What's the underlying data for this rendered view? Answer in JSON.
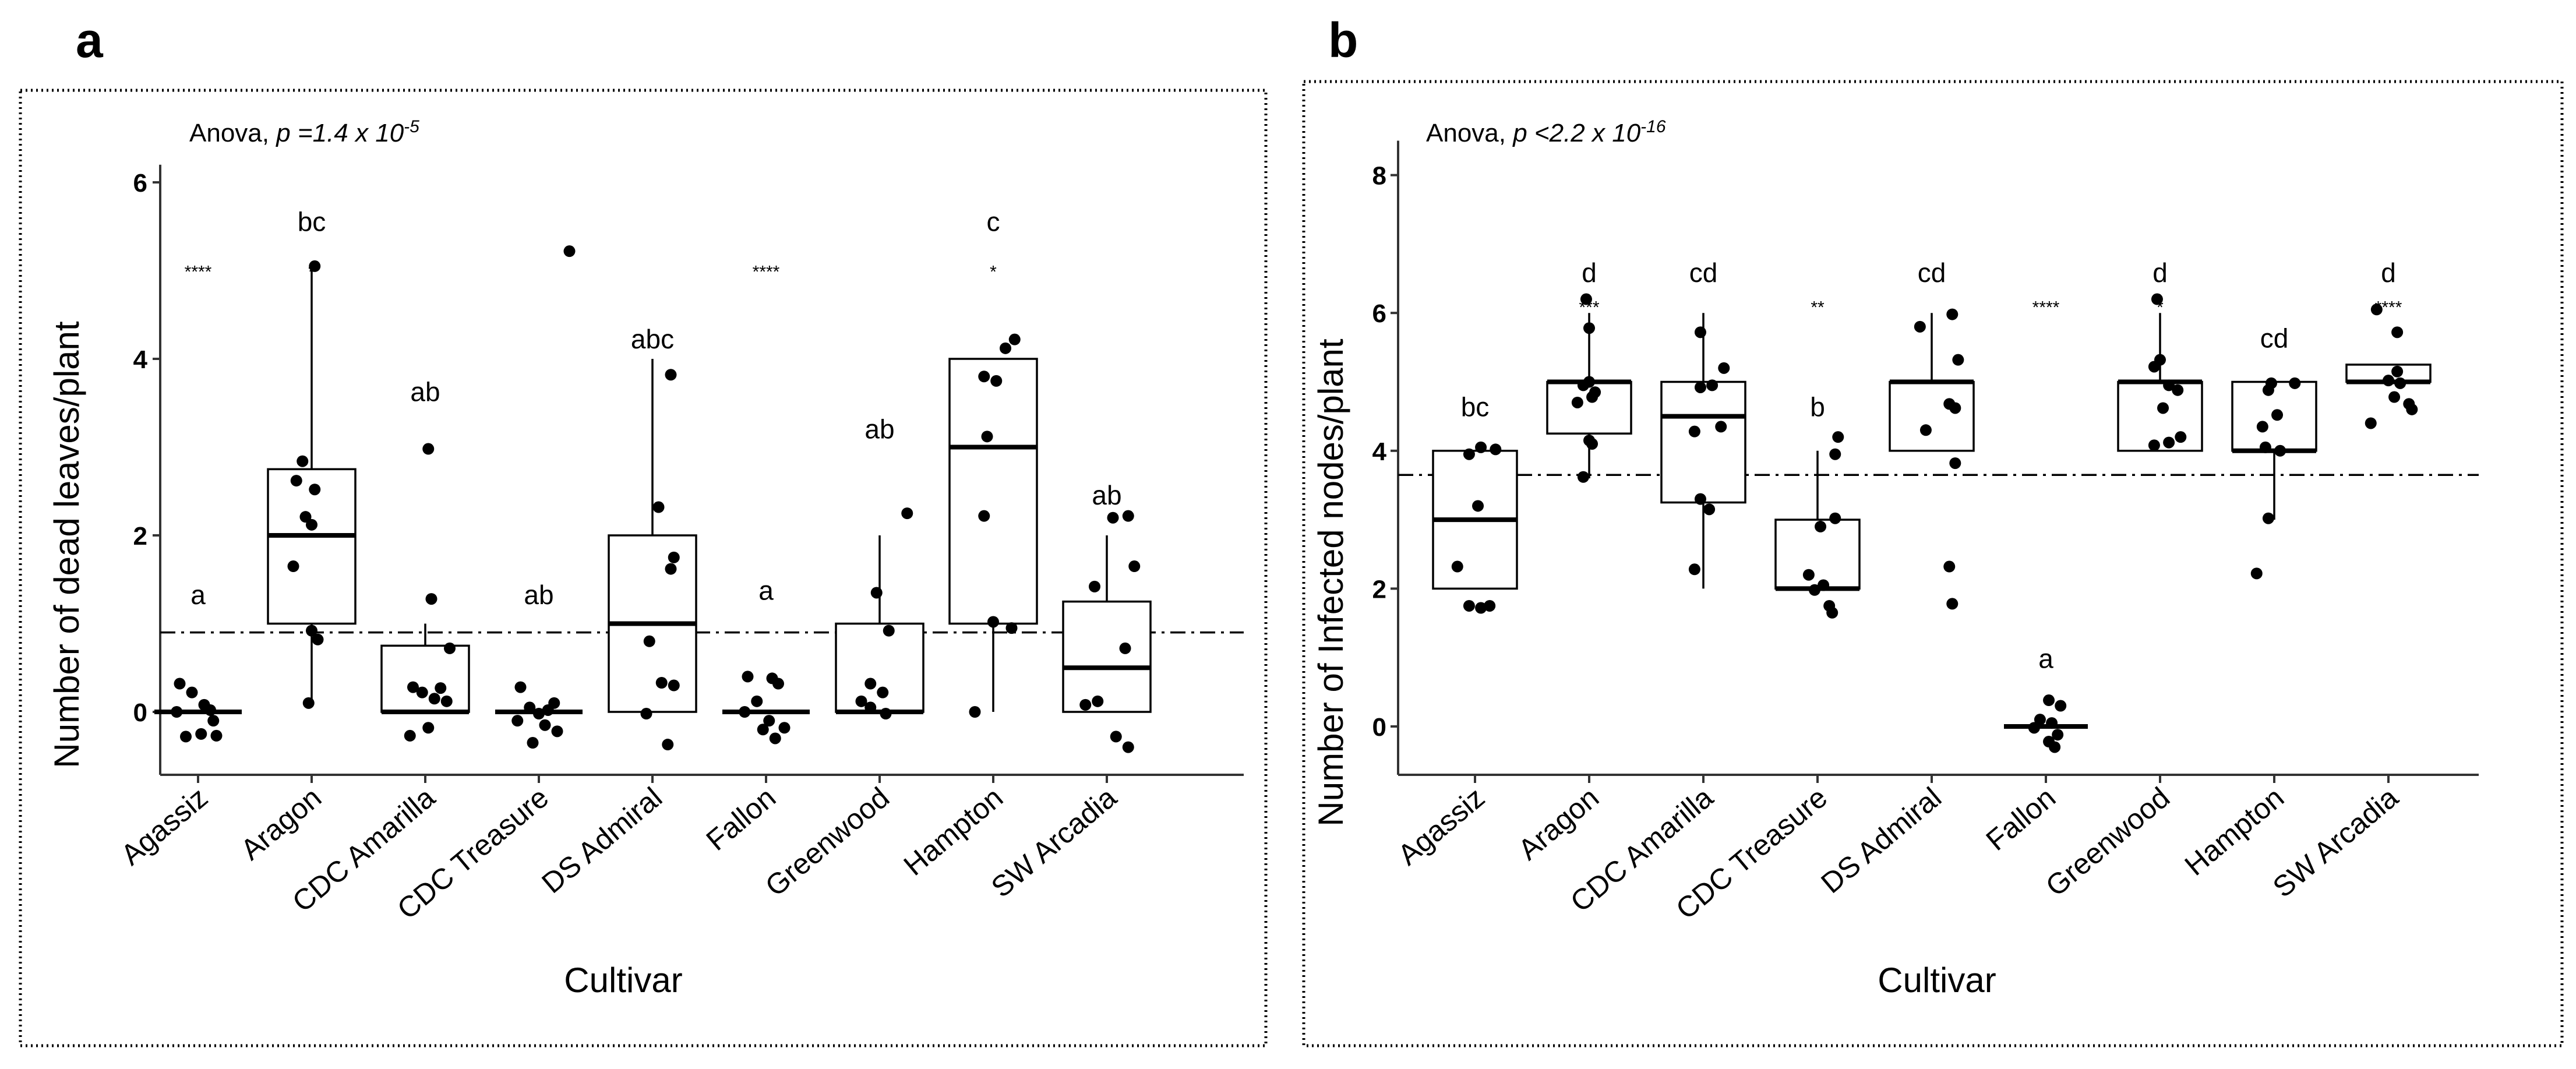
{
  "chart_data": [
    {
      "panel": "a",
      "type": "box",
      "anova_prefix": "Anova, ",
      "anova_p": "p =1.4 x 10",
      "anova_exp": "-5",
      "xlabel": "Cultivar",
      "ylabel": "Number of dead leaves/plant",
      "ylim": [
        -0.7,
        6.2
      ],
      "yticks": [
        "0",
        "2",
        "4",
        "6"
      ],
      "reference_line": 0.9,
      "categories": [
        "Agassiz",
        "Aragon",
        "CDC Amarilla",
        "CDC Treasure",
        "DS Admiral",
        "Fallon",
        "Greenwood",
        "Hampton",
        "SW Arcadia"
      ],
      "boxes": [
        {
          "q1": 0,
          "median": 0,
          "q3": 0,
          "lo": 0,
          "hi": 0
        },
        {
          "q1": 1,
          "median": 2,
          "q3": 2.75,
          "lo": 0.1,
          "hi": 5
        },
        {
          "q1": 0,
          "median": 0,
          "q3": 0.75,
          "lo": 0,
          "hi": 1
        },
        {
          "q1": 0,
          "median": 0,
          "q3": 0,
          "lo": 0,
          "hi": 0
        },
        {
          "q1": 0,
          "median": 1,
          "q3": 2,
          "lo": 0,
          "hi": 4
        },
        {
          "q1": 0,
          "median": 0,
          "q3": 0,
          "lo": 0,
          "hi": 0
        },
        {
          "q1": 0,
          "median": 0,
          "q3": 1,
          "lo": 0,
          "hi": 2
        },
        {
          "q1": 1,
          "median": 3,
          "q3": 4,
          "lo": 0,
          "hi": 4
        },
        {
          "q1": 0,
          "median": 0.5,
          "q3": 1.25,
          "lo": 0,
          "hi": 2
        }
      ],
      "points": [
        [
          [
            -0.3,
            0.32
          ],
          [
            -0.1,
            0.22
          ],
          [
            0.1,
            0.08
          ],
          [
            0.2,
            0.02
          ],
          [
            -0.35,
            0.0
          ],
          [
            0.25,
            -0.1
          ],
          [
            0.05,
            -0.25
          ],
          [
            -0.2,
            -0.28
          ],
          [
            0.3,
            -0.27
          ]
        ],
        [
          [
            0.05,
            5.05
          ],
          [
            -0.15,
            2.84
          ],
          [
            -0.25,
            2.62
          ],
          [
            0.05,
            2.52
          ],
          [
            -0.1,
            2.21
          ],
          [
            0.0,
            2.12
          ],
          [
            -0.3,
            1.65
          ],
          [
            0.0,
            0.92
          ],
          [
            0.1,
            0.82
          ],
          [
            -0.05,
            0.1
          ]
        ],
        [
          [
            0.05,
            2.98
          ],
          [
            0.1,
            1.28
          ],
          [
            -0.2,
            0.28
          ],
          [
            0.4,
            0.72
          ],
          [
            0.25,
            0.27
          ],
          [
            -0.05,
            0.22
          ],
          [
            0.15,
            0.15
          ],
          [
            0.35,
            0.12
          ],
          [
            0.05,
            -0.18
          ],
          [
            -0.25,
            -0.27
          ]
        ],
        [
          [
            0.5,
            5.22
          ],
          [
            -0.3,
            0.28
          ],
          [
            0.25,
            0.1
          ],
          [
            -0.15,
            0.05
          ],
          [
            0.15,
            0.02
          ],
          [
            0.0,
            -0.02
          ],
          [
            -0.35,
            -0.1
          ],
          [
            0.1,
            -0.15
          ],
          [
            0.3,
            -0.22
          ],
          [
            -0.1,
            -0.35
          ]
        ],
        [
          [
            0.3,
            3.82
          ],
          [
            0.1,
            2.32
          ],
          [
            0.35,
            1.75
          ],
          [
            0.3,
            1.62
          ],
          [
            -0.05,
            0.8
          ],
          [
            0.35,
            0.3
          ],
          [
            0.15,
            0.33
          ],
          [
            -0.1,
            -0.02
          ],
          [
            0.25,
            -0.37
          ]
        ],
        [
          [
            -0.3,
            0.4
          ],
          [
            0.1,
            0.38
          ],
          [
            0.2,
            0.32
          ],
          [
            -0.15,
            0.12
          ],
          [
            -0.35,
            0.0
          ],
          [
            0.05,
            -0.1
          ],
          [
            -0.05,
            -0.2
          ],
          [
            0.3,
            -0.18
          ],
          [
            0.15,
            -0.3
          ]
        ],
        [
          [
            0.45,
            2.25
          ],
          [
            -0.05,
            1.35
          ],
          [
            0.15,
            0.92
          ],
          [
            -0.15,
            0.32
          ],
          [
            0.05,
            0.22
          ],
          [
            -0.3,
            0.12
          ],
          [
            -0.15,
            0.05
          ],
          [
            0.1,
            -0.02
          ]
        ],
        [
          [
            0.35,
            4.22
          ],
          [
            0.2,
            4.12
          ],
          [
            -0.15,
            3.8
          ],
          [
            0.05,
            3.75
          ],
          [
            -0.1,
            3.12
          ],
          [
            -0.15,
            2.22
          ],
          [
            0.0,
            1.02
          ],
          [
            0.3,
            0.95
          ],
          [
            -0.3,
            0.0
          ]
        ],
        [
          [
            0.35,
            2.22
          ],
          [
            0.1,
            2.2
          ],
          [
            0.45,
            1.65
          ],
          [
            -0.2,
            1.42
          ],
          [
            0.3,
            0.72
          ],
          [
            -0.15,
            0.12
          ],
          [
            -0.35,
            0.08
          ],
          [
            0.15,
            -0.28
          ],
          [
            0.35,
            -0.4
          ]
        ]
      ],
      "group_letters": [
        "a",
        "bc",
        "ab",
        "ab",
        "abc",
        "a",
        "ab",
        "c",
        "ab"
      ],
      "letter_y": [
        1.22,
        5.45,
        3.52,
        1.22,
        4.12,
        1.27,
        3.1,
        5.45,
        2.35
      ],
      "sig_marks": [
        "****",
        "*",
        "",
        "",
        "",
        "****",
        "",
        "*",
        ""
      ],
      "sig_y": [
        5.0,
        5.0,
        5.0,
        5.0,
        5.0,
        5.0,
        5.0,
        5.0,
        5.0
      ]
    },
    {
      "panel": "b",
      "type": "box",
      "anova_prefix": "Anova, ",
      "anova_p": "p <2.2 x 10",
      "anova_exp": "-16",
      "xlabel": "Cultivar",
      "ylabel": "Number of Infected nodes/plant",
      "ylim": [
        -0.7,
        8.5
      ],
      "yticks": [
        "0",
        "2",
        "4",
        "6",
        "8"
      ],
      "reference_line": 3.65,
      "categories": [
        "Agassiz",
        "Aragon",
        "CDC Amarilla",
        "CDC Treasure",
        "DS Admiral",
        "Fallon",
        "Greenwood",
        "Hampton",
        "SW Arcadia"
      ],
      "boxes": [
        {
          "q1": 2,
          "median": 3,
          "q3": 4,
          "lo": 2,
          "hi": 4
        },
        {
          "q1": 4.25,
          "median": 5,
          "q3": 5,
          "lo": 3.6,
          "hi": 6
        },
        {
          "q1": 3.25,
          "median": 4.5,
          "q3": 5,
          "lo": 2,
          "hi": 6
        },
        {
          "q1": 2,
          "median": 2,
          "q3": 3,
          "lo": 2,
          "hi": 4
        },
        {
          "q1": 4,
          "median": 5,
          "q3": 5,
          "lo": 4,
          "hi": 6
        },
        {
          "q1": 0,
          "median": 0,
          "q3": 0,
          "lo": 0,
          "hi": 0
        },
        {
          "q1": 4,
          "median": 5,
          "q3": 5,
          "lo": 4,
          "hi": 6
        },
        {
          "q1": 4,
          "median": 4,
          "q3": 5,
          "lo": 3,
          "hi": 5
        },
        {
          "q1": 5,
          "median": 5,
          "q3": 5.25,
          "lo": 5,
          "hi": 5.25
        }
      ],
      "points": [
        [
          [
            0.1,
            4.05
          ],
          [
            0.35,
            4.02
          ],
          [
            -0.1,
            3.95
          ],
          [
            0.05,
            3.2
          ],
          [
            -0.3,
            2.32
          ],
          [
            -0.1,
            1.75
          ],
          [
            0.1,
            1.72
          ],
          [
            0.25,
            1.75
          ]
        ],
        [
          [
            -0.05,
            6.2
          ],
          [
            0.0,
            5.78
          ],
          [
            0.0,
            5.0
          ],
          [
            -0.1,
            4.95
          ],
          [
            0.1,
            4.85
          ],
          [
            0.05,
            4.78
          ],
          [
            -0.2,
            4.7
          ],
          [
            0.0,
            4.15
          ],
          [
            0.05,
            4.1
          ],
          [
            -0.1,
            3.62
          ]
        ],
        [
          [
            -0.05,
            5.72
          ],
          [
            0.35,
            5.2
          ],
          [
            0.15,
            4.95
          ],
          [
            -0.05,
            4.92
          ],
          [
            0.3,
            4.35
          ],
          [
            -0.15,
            4.28
          ],
          [
            -0.05,
            3.3
          ],
          [
            0.1,
            3.15
          ],
          [
            -0.15,
            2.28
          ]
        ],
        [
          [
            0.35,
            4.2
          ],
          [
            0.3,
            3.95
          ],
          [
            0.3,
            3.02
          ],
          [
            0.05,
            2.9
          ],
          [
            -0.15,
            2.2
          ],
          [
            0.1,
            2.05
          ],
          [
            -0.05,
            1.98
          ],
          [
            0.2,
            1.75
          ],
          [
            0.25,
            1.65
          ]
        ],
        [
          [
            0.35,
            5.98
          ],
          [
            -0.2,
            5.8
          ],
          [
            0.45,
            5.32
          ],
          [
            0.3,
            4.68
          ],
          [
            0.4,
            4.62
          ],
          [
            -0.1,
            4.3
          ],
          [
            0.4,
            3.82
          ],
          [
            0.3,
            2.32
          ],
          [
            0.35,
            1.78
          ]
        ],
        [
          [
            0.05,
            0.38
          ],
          [
            0.25,
            0.3
          ],
          [
            -0.1,
            0.1
          ],
          [
            0.1,
            0.05
          ],
          [
            -0.2,
            -0.02
          ],
          [
            0.2,
            -0.12
          ],
          [
            0.05,
            -0.22
          ],
          [
            0.15,
            -0.3
          ]
        ],
        [
          [
            -0.05,
            6.2
          ],
          [
            0.0,
            5.32
          ],
          [
            -0.1,
            5.22
          ],
          [
            0.15,
            4.95
          ],
          [
            0.3,
            4.88
          ],
          [
            0.05,
            4.62
          ],
          [
            0.35,
            4.2
          ],
          [
            0.15,
            4.12
          ],
          [
            -0.1,
            4.08
          ]
        ],
        [
          [
            -0.05,
            4.98
          ],
          [
            0.35,
            4.98
          ],
          [
            -0.1,
            4.88
          ],
          [
            0.05,
            4.52
          ],
          [
            -0.2,
            4.35
          ],
          [
            -0.15,
            4.05
          ],
          [
            0.1,
            4.0
          ],
          [
            -0.1,
            3.02
          ],
          [
            -0.3,
            2.22
          ]
        ],
        [
          [
            -0.2,
            6.05
          ],
          [
            0.15,
            5.72
          ],
          [
            0.15,
            5.15
          ],
          [
            0.0,
            5.02
          ],
          [
            0.2,
            4.98
          ],
          [
            0.1,
            4.78
          ],
          [
            0.35,
            4.68
          ],
          [
            0.4,
            4.6
          ],
          [
            -0.3,
            4.4
          ]
        ]
      ],
      "group_letters": [
        "bc",
        "d",
        "cd",
        "b",
        "cd",
        "a",
        "d",
        "cd",
        "d"
      ],
      "letter_y": [
        4.5,
        6.45,
        6.45,
        4.5,
        6.45,
        0.85,
        6.45,
        5.5,
        6.45
      ],
      "sig_marks": [
        "",
        "***",
        "",
        "**",
        "",
        "****",
        "*",
        "",
        "****"
      ],
      "sig_y": [
        6.1,
        6.1,
        6.1,
        6.1,
        6.1,
        6.1,
        6.1,
        6.1,
        6.1
      ]
    }
  ]
}
